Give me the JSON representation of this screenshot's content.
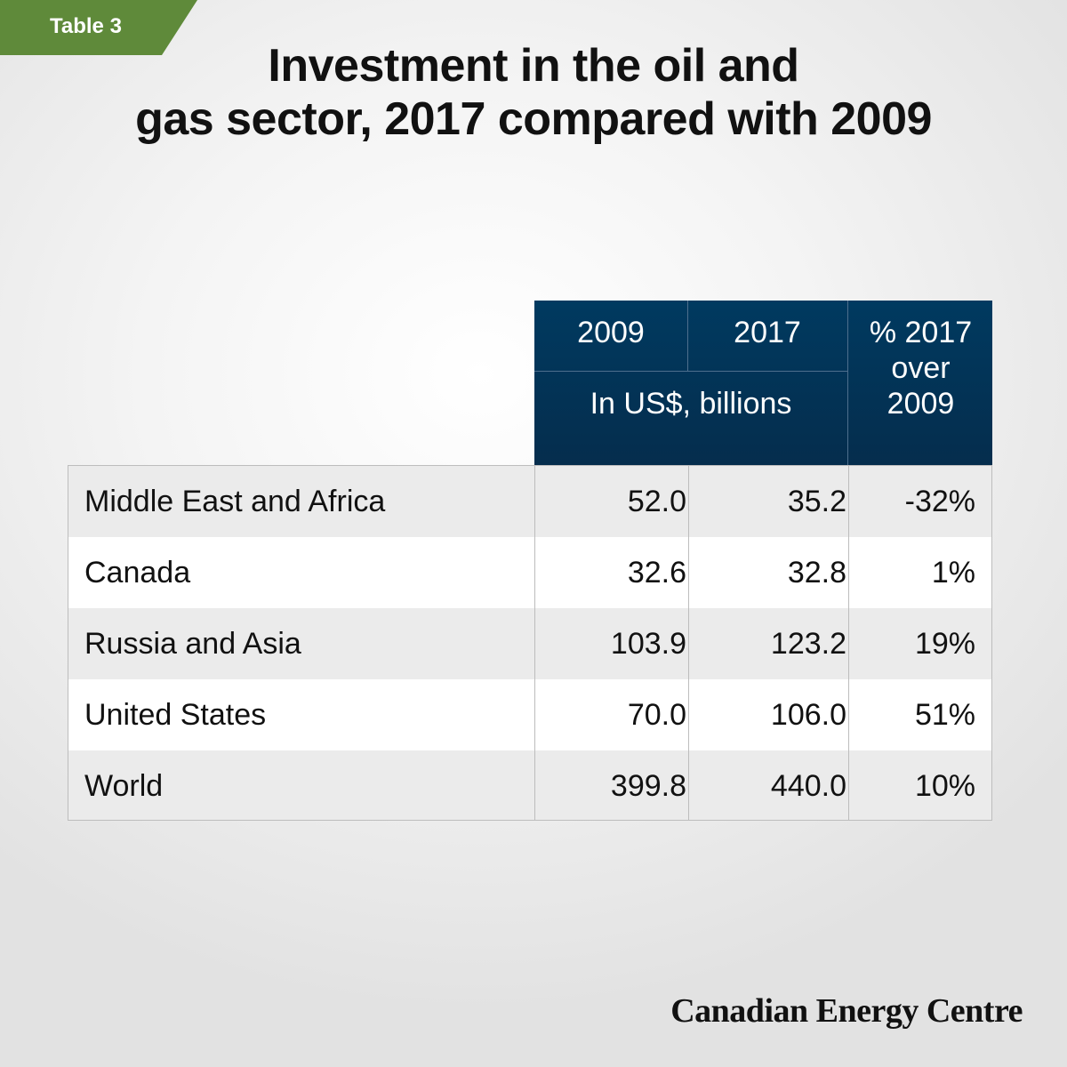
{
  "tag": "Table 3",
  "title_lines": [
    "Investment in the oil and",
    "gas sector, 2017 compared with 2009"
  ],
  "brand": "Canadian Energy Centre",
  "colors": {
    "header_bg": "#003a60",
    "tag_bg": "#5f8a3a",
    "row_alt": "#ebebeb"
  },
  "chart_data": {
    "type": "table",
    "title": "Investment in the oil and gas sector, 2017 compared with 2009",
    "columns": [
      "2009",
      "2017",
      "% 2017 over 2009"
    ],
    "unit": "In US$, billions",
    "rows": [
      {
        "region": "Middle East and Africa",
        "v2009": "52.0",
        "v2017": "35.2",
        "pct": "-32%"
      },
      {
        "region": "Canada",
        "v2009": "32.6",
        "v2017": "32.8",
        "pct": "1%"
      },
      {
        "region": "Russia and Asia",
        "v2009": "103.9",
        "v2017": "123.2",
        "pct": "19%"
      },
      {
        "region": "United States",
        "v2009": "70.0",
        "v2017": "106.0",
        "pct": "51%"
      },
      {
        "region": "World",
        "v2009": "399.8",
        "v2017": "440.0",
        "pct": "10%"
      }
    ]
  }
}
